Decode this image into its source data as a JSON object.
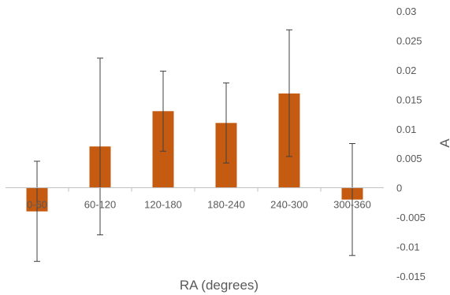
{
  "chart_data": {
    "type": "bar",
    "categories": [
      "0-60",
      "60-120",
      "120-180",
      "180-240",
      "240-300",
      "300-360"
    ],
    "values": [
      -0.004,
      0.007,
      0.013,
      0.011,
      0.016,
      -0.002
    ],
    "error_bars": {
      "lower": [
        -0.0125,
        -0.008,
        0.0062,
        0.0042,
        0.0053,
        -0.0115
      ],
      "upper": [
        0.0045,
        0.022,
        0.0198,
        0.0178,
        0.0268,
        0.0075
      ]
    },
    "title": "",
    "xlabel": "RA (degrees)",
    "ylabel": "A",
    "ylim": [
      -0.015,
      0.03
    ],
    "yticks": [
      "-0.015",
      "-0.01",
      "-0.005",
      "0",
      "0.005",
      "0.01",
      "0.015",
      "0.02",
      "0.025",
      "0.03"
    ],
    "y_axis_position": "right",
    "grid": false,
    "legend": "none",
    "colors": {
      "bar": "#C55A11",
      "error_bar": "#404040",
      "axis": "#bfbfbf",
      "text": "#595959"
    }
  }
}
